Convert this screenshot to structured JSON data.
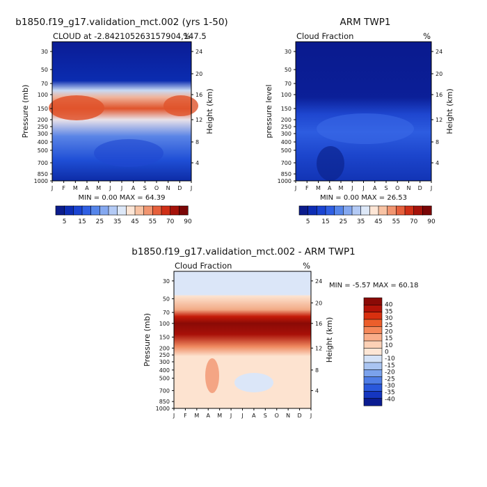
{
  "months": [
    "J",
    "F",
    "M",
    "A",
    "M",
    "J",
    "J",
    "A",
    "S",
    "O",
    "N",
    "D",
    "J"
  ],
  "chart_data": [
    {
      "type": "heatmap",
      "id": "p1",
      "title": "b1850.f19_g17.validation_mct.002 (yrs 1-50)",
      "subtitle_left": "CLOUD at -2.842105263157904,147.5",
      "subtitle_right": "%",
      "ylabel": "Pressure (mb)",
      "ylabel_right": "Height (km)",
      "yticks": [
        "30",
        "50",
        "70",
        "100",
        "150",
        "200",
        "250",
        "300",
        "400",
        "500",
        "700",
        "850",
        "1000"
      ],
      "height_ticks": [
        "24",
        "20",
        "16",
        "12",
        "8",
        "4"
      ],
      "minmax": "MIN =    0.00 MAX =   64.39",
      "colorbar_labels": [
        "5",
        "15",
        "25",
        "35",
        "45",
        "55",
        "70",
        "90"
      ]
    },
    {
      "type": "heatmap",
      "id": "p2",
      "title": "ARM TWP1",
      "subtitle_left": "Cloud Fraction",
      "subtitle_right": "%",
      "ylabel": "pressure level",
      "ylabel_right": "Height (km)",
      "yticks": [
        "30",
        "50",
        "70",
        "100",
        "150",
        "200",
        "250",
        "300",
        "400",
        "500",
        "700",
        "850",
        "1000"
      ],
      "height_ticks": [
        "24",
        "20",
        "16",
        "12",
        "8",
        "4"
      ],
      "minmax": "MIN =    0.00 MAX =   26.53",
      "colorbar_labels": [
        "5",
        "15",
        "25",
        "35",
        "45",
        "55",
        "70",
        "90"
      ]
    },
    {
      "type": "heatmap",
      "id": "p3",
      "title": "b1850.f19_g17.validation_mct.002 - ARM TWP1",
      "subtitle_left": "Cloud Fraction",
      "subtitle_right": "%",
      "ylabel": "Pressure (mb)",
      "ylabel_right": "Height (km)",
      "yticks": [
        "30",
        "50",
        "70",
        "100",
        "150",
        "200",
        "250",
        "300",
        "400",
        "500",
        "700",
        "850",
        "1000"
      ],
      "height_ticks": [
        "24",
        "20",
        "16",
        "12",
        "8",
        "4"
      ],
      "minmax": "MIN =   -5.57 MAX =   60.18",
      "colorbar_labels": [
        "40",
        "35",
        "30",
        "25",
        "20",
        "15",
        "10",
        "0",
        "-10",
        "-15",
        "-20",
        "-25",
        "-30",
        "-35",
        "-40"
      ]
    }
  ]
}
